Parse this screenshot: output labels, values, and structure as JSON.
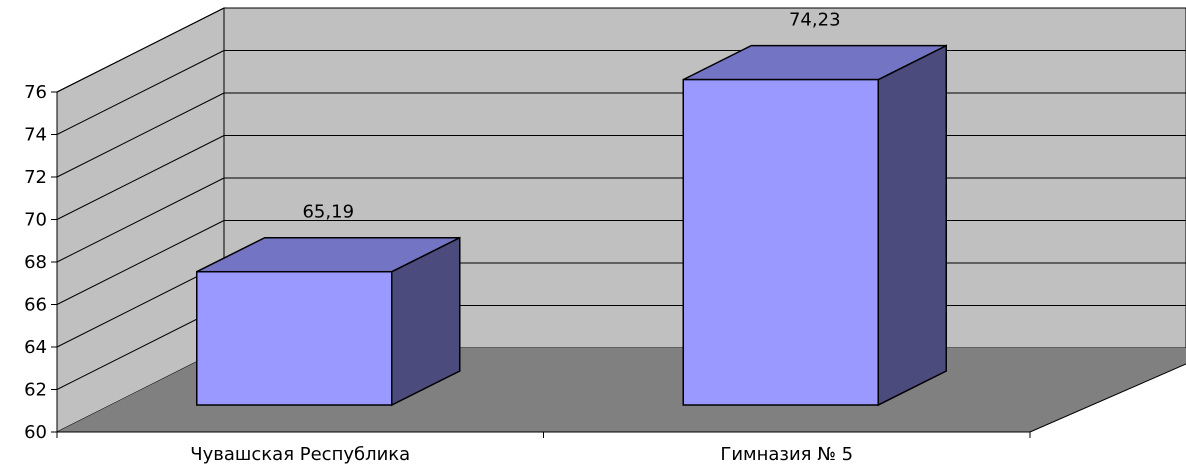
{
  "chart_data": {
    "type": "bar",
    "categories": [
      "Чувашская Республика",
      "Гимназия № 5"
    ],
    "values": [
      65.19,
      74.23
    ],
    "data_labels": [
      "65,19",
      "74,23"
    ],
    "ylim": [
      60,
      76
    ],
    "yticks": [
      "60",
      "62",
      "64",
      "66",
      "68",
      "70",
      "72",
      "74",
      "76"
    ],
    "grid": true,
    "legend": "none",
    "style": "3d-column"
  },
  "colors": {
    "wall": "#c0c0c0",
    "floor": "#808080",
    "bar_front": "#9999ff",
    "bar_top": "#7474c4",
    "bar_side": "#4b4b7e",
    "axis": "#000000"
  }
}
